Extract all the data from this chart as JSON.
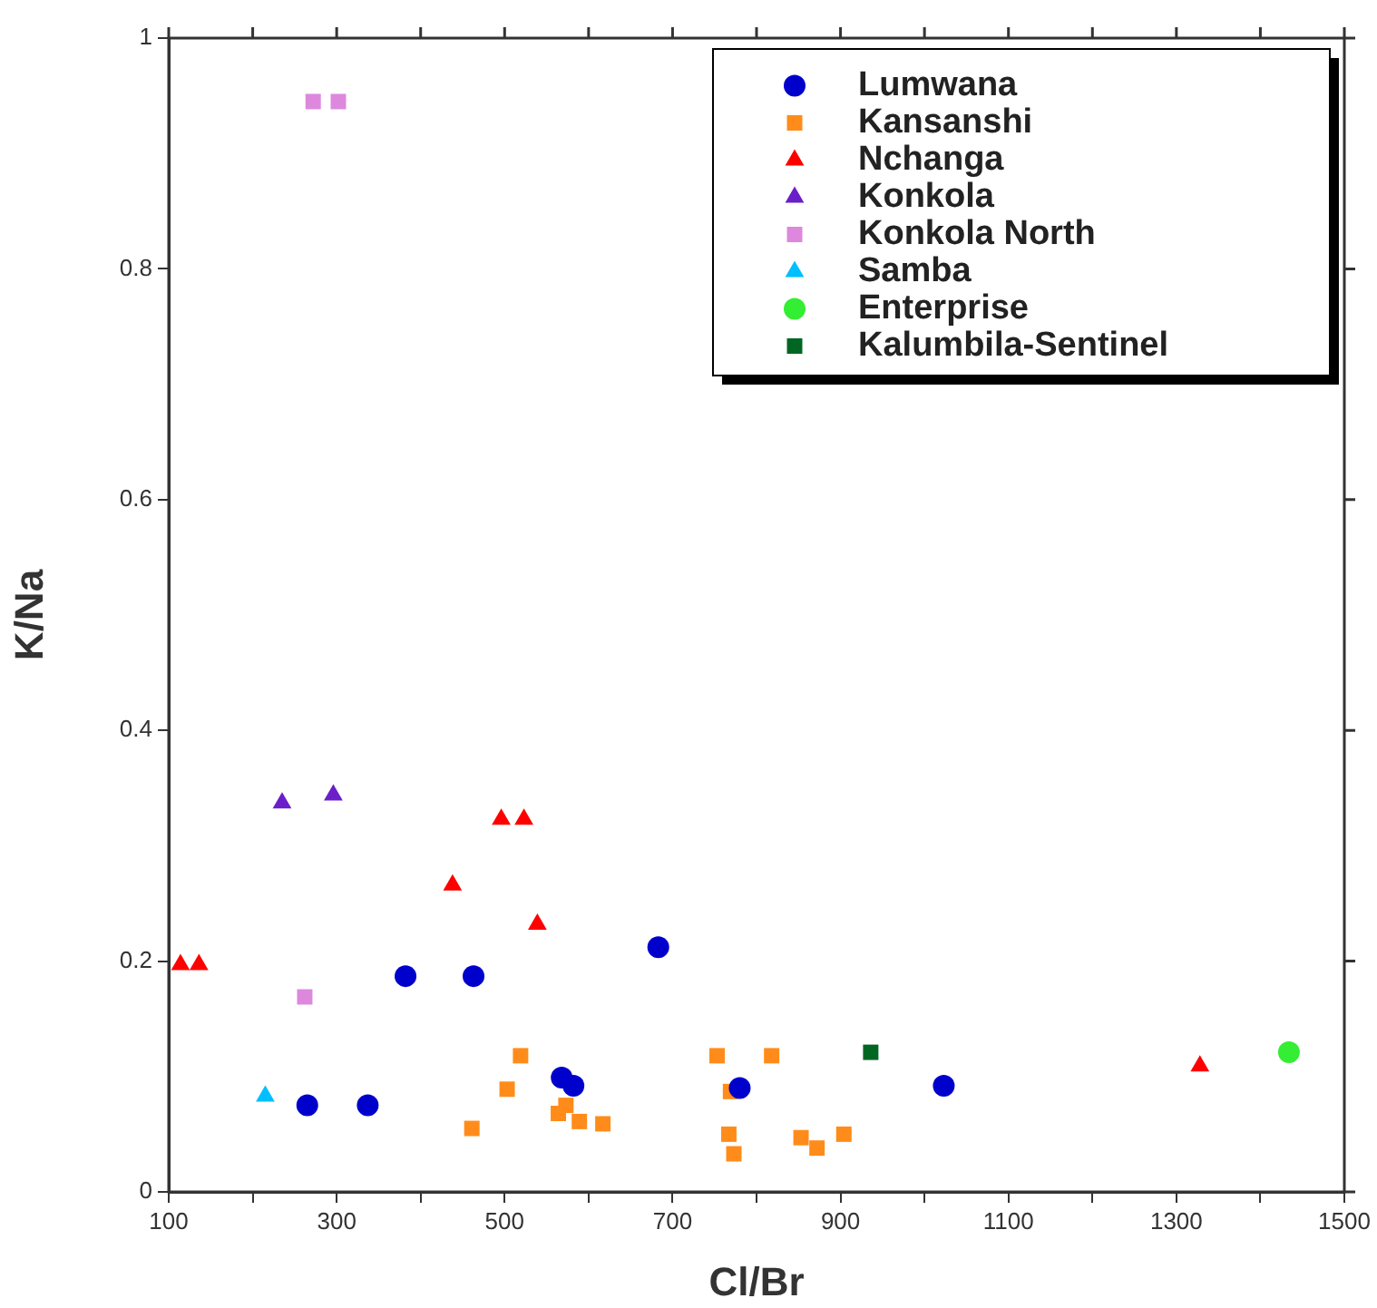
{
  "chart_data": {
    "type": "scatter",
    "xlabel": "Cl/Br",
    "ylabel": "K/Na",
    "xlim": [
      100,
      1500
    ],
    "ylim": [
      0,
      1
    ],
    "xticks": [
      100,
      {
        "value": 200,
        "label": null
      },
      300,
      {
        "value": 400,
        "label": null
      },
      500,
      {
        "value": 600,
        "label": null
      },
      700,
      {
        "value": 800,
        "label": null
      },
      900,
      {
        "value": 1000,
        "label": null
      },
      1100,
      {
        "value": 1200,
        "label": null
      },
      1300,
      {
        "value": 1400,
        "label": null
      },
      1500
    ],
    "yticks": [
      0,
      0.2,
      0.4,
      0.6,
      0.8,
      1
    ],
    "grid": false,
    "legend": "top right",
    "series": [
      {
        "name": "Lumwana",
        "color": "#0000cc",
        "marker": "circle",
        "x": [
          265,
          337,
          382,
          463,
          568,
          582,
          683,
          780,
          1023
        ],
        "values": [
          0.075,
          0.075,
          0.187,
          0.187,
          0.099,
          0.092,
          0.212,
          0.09,
          0.092
        ]
      },
      {
        "name": "Kansanshi",
        "color": "#ff8c1a",
        "marker": "square",
        "x": [
          461,
          503,
          519,
          564,
          573,
          589,
          617,
          753,
          769,
          767,
          773,
          818,
          853,
          872,
          904
        ],
        "values": [
          0.055,
          0.089,
          0.118,
          0.068,
          0.075,
          0.061,
          0.059,
          0.118,
          0.087,
          0.05,
          0.033,
          0.118,
          0.047,
          0.038,
          0.05
        ]
      },
      {
        "name": "Nchanga",
        "color": "#ff0000",
        "marker": "triangle",
        "x": [
          114,
          136,
          438,
          496,
          523,
          539,
          1328
        ],
        "values": [
          0.197,
          0.197,
          0.266,
          0.323,
          0.323,
          0.232,
          0.109
        ]
      },
      {
        "name": "Konkola",
        "color": "#6a1fc8",
        "marker": "triangle",
        "x": [
          235,
          296
        ],
        "values": [
          0.337,
          0.344
        ]
      },
      {
        "name": "Konkola North",
        "color": "#dd88dd",
        "marker": "square",
        "x": [
          262,
          272,
          302
        ],
        "values": [
          0.169,
          0.945,
          0.945
        ]
      },
      {
        "name": "Samba",
        "color": "#00bfff",
        "marker": "triangle",
        "x": [
          215
        ],
        "values": [
          0.083
        ]
      },
      {
        "name": "Enterprise",
        "color": "#33ee33",
        "marker": "circle",
        "x": [
          1434
        ],
        "values": [
          0.121
        ]
      },
      {
        "name": "Kalumbila-Sentinel",
        "color": "#006622",
        "marker": "square",
        "x": [
          936
        ],
        "values": [
          0.121
        ]
      }
    ]
  }
}
